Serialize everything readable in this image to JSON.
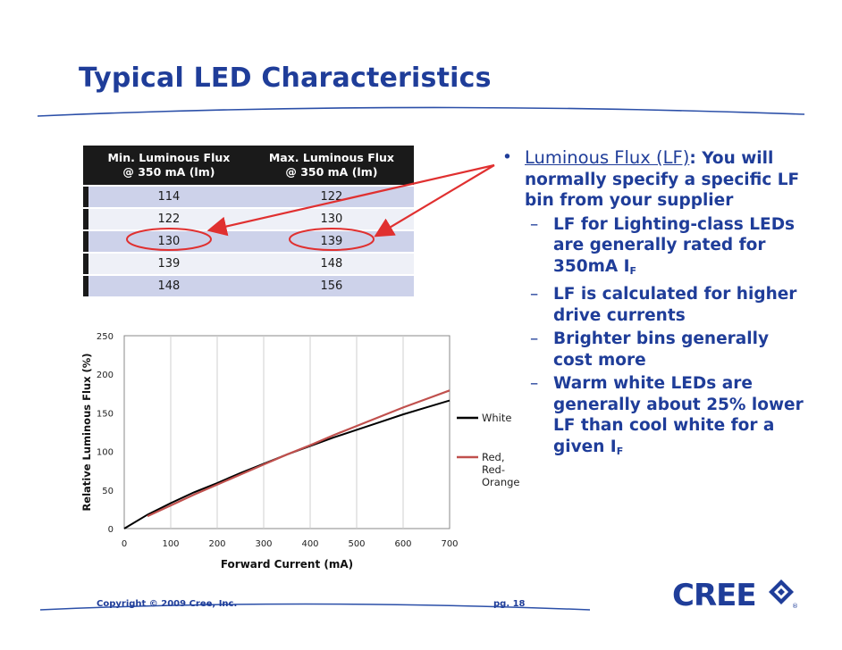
{
  "title": "Typical LED Characteristics",
  "table": {
    "headers": [
      [
        "Min. Luminous Flux",
        "@ 350 mA (lm)"
      ],
      [
        "Max. Luminous Flux",
        "@ 350 mA (lm)"
      ]
    ],
    "rows": [
      [
        "114",
        "122"
      ],
      [
        "122",
        "130"
      ],
      [
        "130",
        "139"
      ],
      [
        "139",
        "148"
      ],
      [
        "148",
        "156"
      ]
    ],
    "circled_row": 2
  },
  "bullets": {
    "main_head": "Luminous Flux (LF)",
    "main_colon": ":",
    "main_text": "You will normally specify a specific LF bin from your supplier",
    "subs": [
      {
        "text": "LF for Lighting-class LEDs are generally rated for 350mA I",
        "subscript": "F",
        "after": ""
      },
      {
        "text": "LF is calculated for higher drive currents",
        "subscript": "",
        "after": ""
      },
      {
        "text": "Brighter bins generally cost more",
        "subscript": "",
        "after": ""
      },
      {
        "text": "Warm white LEDs are generally about 25% lower LF  than cool white for a given I",
        "subscript": "F",
        "after": ""
      }
    ]
  },
  "chart_data": {
    "type": "line",
    "xlabel": "Forward Current (mA)",
    "ylabel": "Relative Luminous Flux (%)",
    "xlim": [
      0,
      700
    ],
    "ylim": [
      0,
      250
    ],
    "xticks": [
      0,
      100,
      200,
      300,
      400,
      500,
      600,
      700
    ],
    "yticks": [
      0,
      50,
      100,
      150,
      200,
      250
    ],
    "grid": "vertical",
    "legend": "right",
    "series": [
      {
        "name": "White",
        "color": "#000000",
        "x": [
          0,
          50,
          100,
          150,
          200,
          250,
          300,
          350,
          400,
          450,
          500,
          550,
          600,
          650,
          700
        ],
        "y": [
          0,
          18,
          33,
          47,
          59,
          72,
          84,
          96,
          107,
          118,
          128,
          138,
          148,
          157,
          166
        ]
      },
      {
        "name": "Red, Red-Orange",
        "color": "#c0504d",
        "x": [
          50,
          100,
          150,
          200,
          250,
          300,
          350,
          400,
          450,
          500,
          550,
          600,
          650,
          700
        ],
        "y": [
          16,
          30,
          44,
          57,
          70,
          83,
          96,
          108,
          121,
          133,
          145,
          157,
          168,
          179
        ]
      }
    ]
  },
  "footer": {
    "copyright": "Copyright © 2009 Cree, Inc.",
    "page": "pg. 18",
    "logo_text": "CREE",
    "registered": "®"
  },
  "colors": {
    "title": "#1f3d99",
    "accent_line": "#2b4fa8",
    "arrow": "#e03030",
    "red_series": "#c0504d"
  }
}
